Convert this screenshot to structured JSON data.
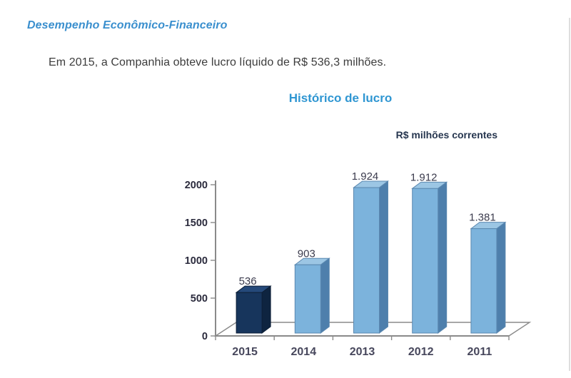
{
  "page": {
    "heading": "Desempenho Econômico-Financeiro",
    "paragraph": "Em 2015, a Companhia obteve lucro líquido de R$ 536,3 milhões."
  },
  "chart_data": {
    "type": "bar",
    "style": "3d-column",
    "title": "Histórico de lucro",
    "units_label": "R$ milhões correntes",
    "categories": [
      "2015",
      "2014",
      "2013",
      "2012",
      "2011"
    ],
    "values": [
      536,
      903,
      1924,
      1912,
      1381
    ],
    "value_labels": [
      "536",
      "903",
      "1.924",
      "1.912",
      "1.381"
    ],
    "ylim": [
      0,
      2000
    ],
    "yticks": [
      0,
      500,
      1000,
      1500,
      2000
    ],
    "grid": "off",
    "legend": "none",
    "highlight_category": "2015",
    "colors": {
      "bar_front": "#7cb3dc",
      "bar_side": "#4e7fac",
      "bar_top": "#9cc6e4",
      "bar_edge": "#5b88b0",
      "highlight_front": "#17355c",
      "highlight_side": "#0e2440",
      "highlight_top": "#25497a",
      "highlight_edge": "#0d1f37",
      "axis": "#8a8a8a",
      "value_label": "#3b3b4d",
      "x_label": "#47475c",
      "y_label": "#2b2b3d",
      "title": "#2f96d2",
      "units": "#26364f",
      "heading": "#3a8fce",
      "body_text": "#3c3c3c"
    }
  }
}
